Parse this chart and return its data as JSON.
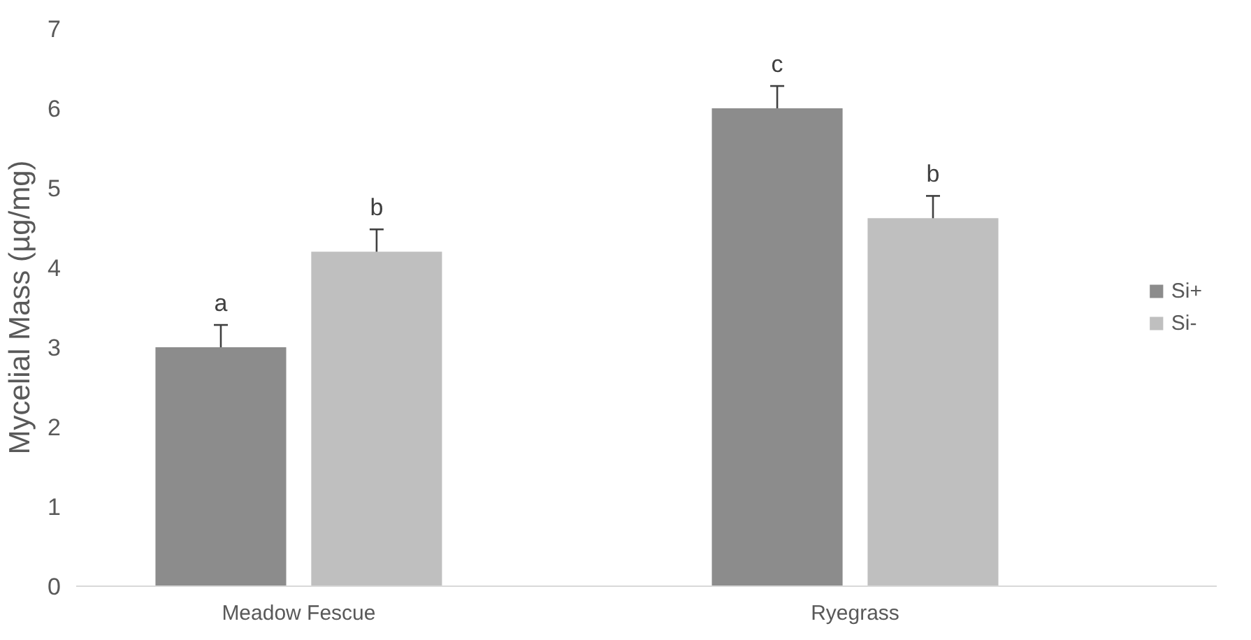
{
  "chart_data": {
    "type": "bar",
    "ylabel": "Mycelial Mass (µg/mg)",
    "categories": [
      "Meadow Fescue",
      "Ryegrass"
    ],
    "series": [
      {
        "name": "Si+",
        "color": "#8c8c8c",
        "values": [
          3.0,
          6.0
        ],
        "errors": [
          0.28,
          0.28
        ]
      },
      {
        "name": "Si-",
        "color": "#bfbfbf",
        "values": [
          4.2,
          4.62
        ],
        "errors": [
          0.28,
          0.28
        ]
      }
    ],
    "ylim": [
      0,
      7
    ],
    "yticks": [
      0,
      1,
      2,
      3,
      4,
      5,
      6,
      7
    ],
    "grid": false,
    "legend": "right",
    "annotations": [
      "a",
      "b",
      "c",
      "b"
    ]
  }
}
